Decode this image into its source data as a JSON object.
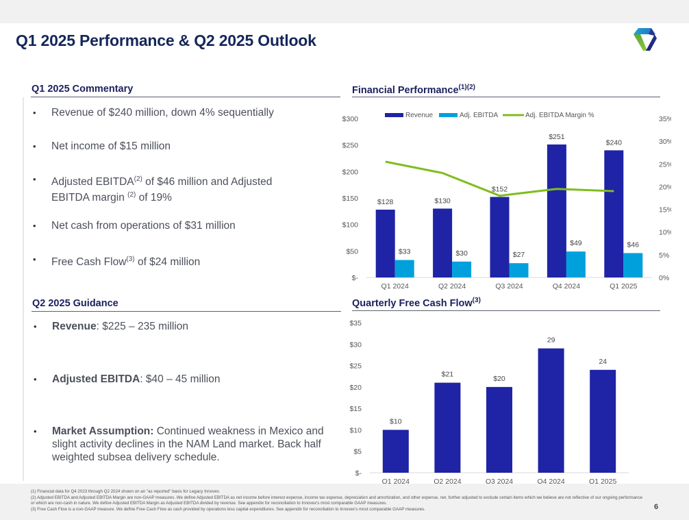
{
  "page": {
    "title": "Q1 2025 Performance & Q2 2025 Outlook",
    "logo_icon": "company-logo-icon",
    "page_number": "6",
    "colors": {
      "title": "#14265a",
      "heading": "#1a1f5e",
      "revenue_bar": "#1f23a5",
      "ebitda_bar": "#00a0dd",
      "margin_line": "#7fbd1c",
      "fcf_bar": "#1f23a5"
    }
  },
  "commentary": {
    "heading": "Q1 2025 Commentary",
    "items": [
      {
        "pre": "Revenue of $240 million, down 4% sequentially",
        "sup": "",
        "post": "",
        "line2": ""
      },
      {
        "pre": "Net income of $15 million",
        "sup": "",
        "post": "",
        "line2": ""
      },
      {
        "pre": "Adjusted EBITDA",
        "sup": "(2)",
        "post": " of $46 million and Adjusted",
        "line2_pre": "EBITDA margin ",
        "line2_sup": "(2)",
        "line2_post": " of 19%"
      },
      {
        "pre": "Net cash from operations of $31 million",
        "sup": "",
        "post": ""
      },
      {
        "pre": "Free Cash Flow",
        "sup": "(3)",
        "post": " of $24 million"
      }
    ]
  },
  "guidance": {
    "heading": "Q2 2025 Guidance",
    "items": [
      {
        "bold": "Revenue",
        "text": ": $225 – 235 million"
      },
      {
        "bold": "Adjusted EBITDA",
        "text": ": $40 – 45 million"
      },
      {
        "bold": "Market Assumption:",
        "text": " Continued weakness in Mexico and slight activity declines in the NAM Land market. Back half weighted subsea delivery schedule."
      }
    ]
  },
  "chart_data": [
    {
      "type": "bar",
      "title": "Financial Performance",
      "title_sup": "(1)(2)",
      "categories": [
        "Q1 2024",
        "Q2 2024",
        "Q3 2024",
        "Q4 2024",
        "Q1 2025"
      ],
      "series": [
        {
          "name": "Revenue",
          "kind": "bar",
          "axis": "left",
          "values": [
            128,
            130,
            152,
            251,
            240
          ],
          "labels": [
            "$128",
            "$130",
            "$152",
            "$251",
            "$240"
          ]
        },
        {
          "name": "Adj. EBITDA",
          "kind": "bar",
          "axis": "left",
          "values": [
            33,
            30,
            27,
            49,
            46
          ],
          "labels": [
            "$33",
            "$30",
            "$27",
            "$49",
            "$46"
          ]
        },
        {
          "name": "Adj. EBITDA Margin %",
          "kind": "line",
          "axis": "right",
          "values": [
            25.5,
            23.0,
            18.0,
            19.5,
            19.0
          ]
        }
      ],
      "ylim": [
        0,
        300
      ],
      "yticks": [
        "$-",
        "$50",
        "$100",
        "$150",
        "$200",
        "$250",
        "$300"
      ],
      "y2lim": [
        0,
        35
      ],
      "y2ticks": [
        "0%",
        "5%",
        "10%",
        "15%",
        "20%",
        "25%",
        "30%",
        "35%"
      ],
      "legend": "top",
      "grid": false,
      "xlabel": "",
      "ylabel": ""
    },
    {
      "type": "bar",
      "title": "Quarterly Free Cash Flow",
      "title_sup": "(3)",
      "categories": [
        "Q1 2024",
        "Q2 2024",
        "Q3 2024",
        "Q4 2024",
        "Q1 2025"
      ],
      "values": [
        10,
        21,
        20,
        29,
        24
      ],
      "labels": [
        "$10",
        "$21",
        "$20",
        "29",
        "24"
      ],
      "ylim": [
        0,
        35
      ],
      "yticks": [
        "$-",
        "$5",
        "$10",
        "$15",
        "$20",
        "$25",
        "$30",
        "$35"
      ],
      "grid": false,
      "xlabel": "",
      "ylabel": ""
    }
  ],
  "footnotes": [
    "(1) Financial data for Q4 2023 through Q2 2024 shown on an \"as reported\" basis for Legacy Innovex.",
    "(2) Adjusted EBITDA and Adjusted EBITDA Margin are non-GAAP measures. We define Adjusted EBITDA as net income before interest expense, income tax expense, depreciation and amortization, and other expense, net, further adjusted to exclude certain items which we believe are not reflective of our ongoing performance or which are non-cash in nature. We define Adjusted EBITDA Margin as Adjusted EBITDA divided by revenue. See appendix for reconciliation to Innovex's most comparable GAAP measures.",
    "(3) Free Cash Flow is a non-GAAP measure.  We define Free Cash Flow as cash provided by operations less capital expenditures.  See appendix for reconciliation to Innovex's most comparable GAAP measures."
  ]
}
